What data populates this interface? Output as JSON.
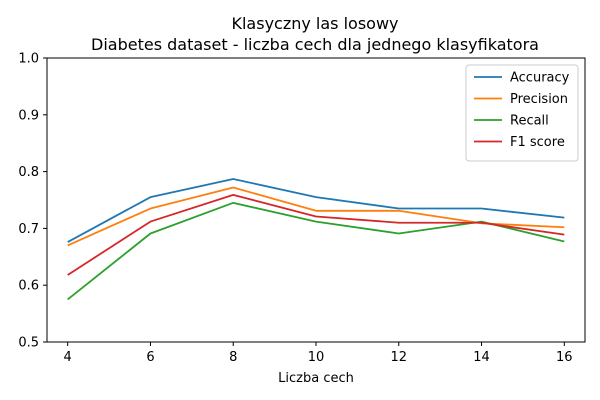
{
  "chart_data": {
    "type": "line",
    "title": "Klasyczny las losowy",
    "subtitle": "Diabetes dataset - liczba cech dla jednego klasyfikatora",
    "xlabel": "Liczba cech",
    "ylabel": "",
    "x": [
      4,
      6,
      8,
      10,
      12,
      14,
      16
    ],
    "xticks": [
      "4",
      "6",
      "8",
      "10",
      "12",
      "14",
      "16"
    ],
    "yticks": [
      "0.5",
      "0.6",
      "0.7",
      "0.8",
      "0.9",
      "1.0"
    ],
    "xlim": [
      3.5,
      16.5
    ],
    "ylim": [
      0.5,
      1.0
    ],
    "grid": false,
    "legend_position": "top-right",
    "series": [
      {
        "name": "Accuracy",
        "color": "#1f77b4",
        "values": [
          0.676,
          0.755,
          0.787,
          0.755,
          0.735,
          0.735,
          0.719
        ]
      },
      {
        "name": "Precision",
        "color": "#ff7f0e",
        "values": [
          0.67,
          0.735,
          0.772,
          0.731,
          0.731,
          0.709,
          0.702
        ]
      },
      {
        "name": "Recall",
        "color": "#2ca02c",
        "values": [
          0.575,
          0.691,
          0.745,
          0.712,
          0.691,
          0.712,
          0.677
        ]
      },
      {
        "name": "F1 score",
        "color": "#d62728",
        "values": [
          0.618,
          0.712,
          0.759,
          0.721,
          0.71,
          0.71,
          0.689
        ]
      }
    ]
  }
}
